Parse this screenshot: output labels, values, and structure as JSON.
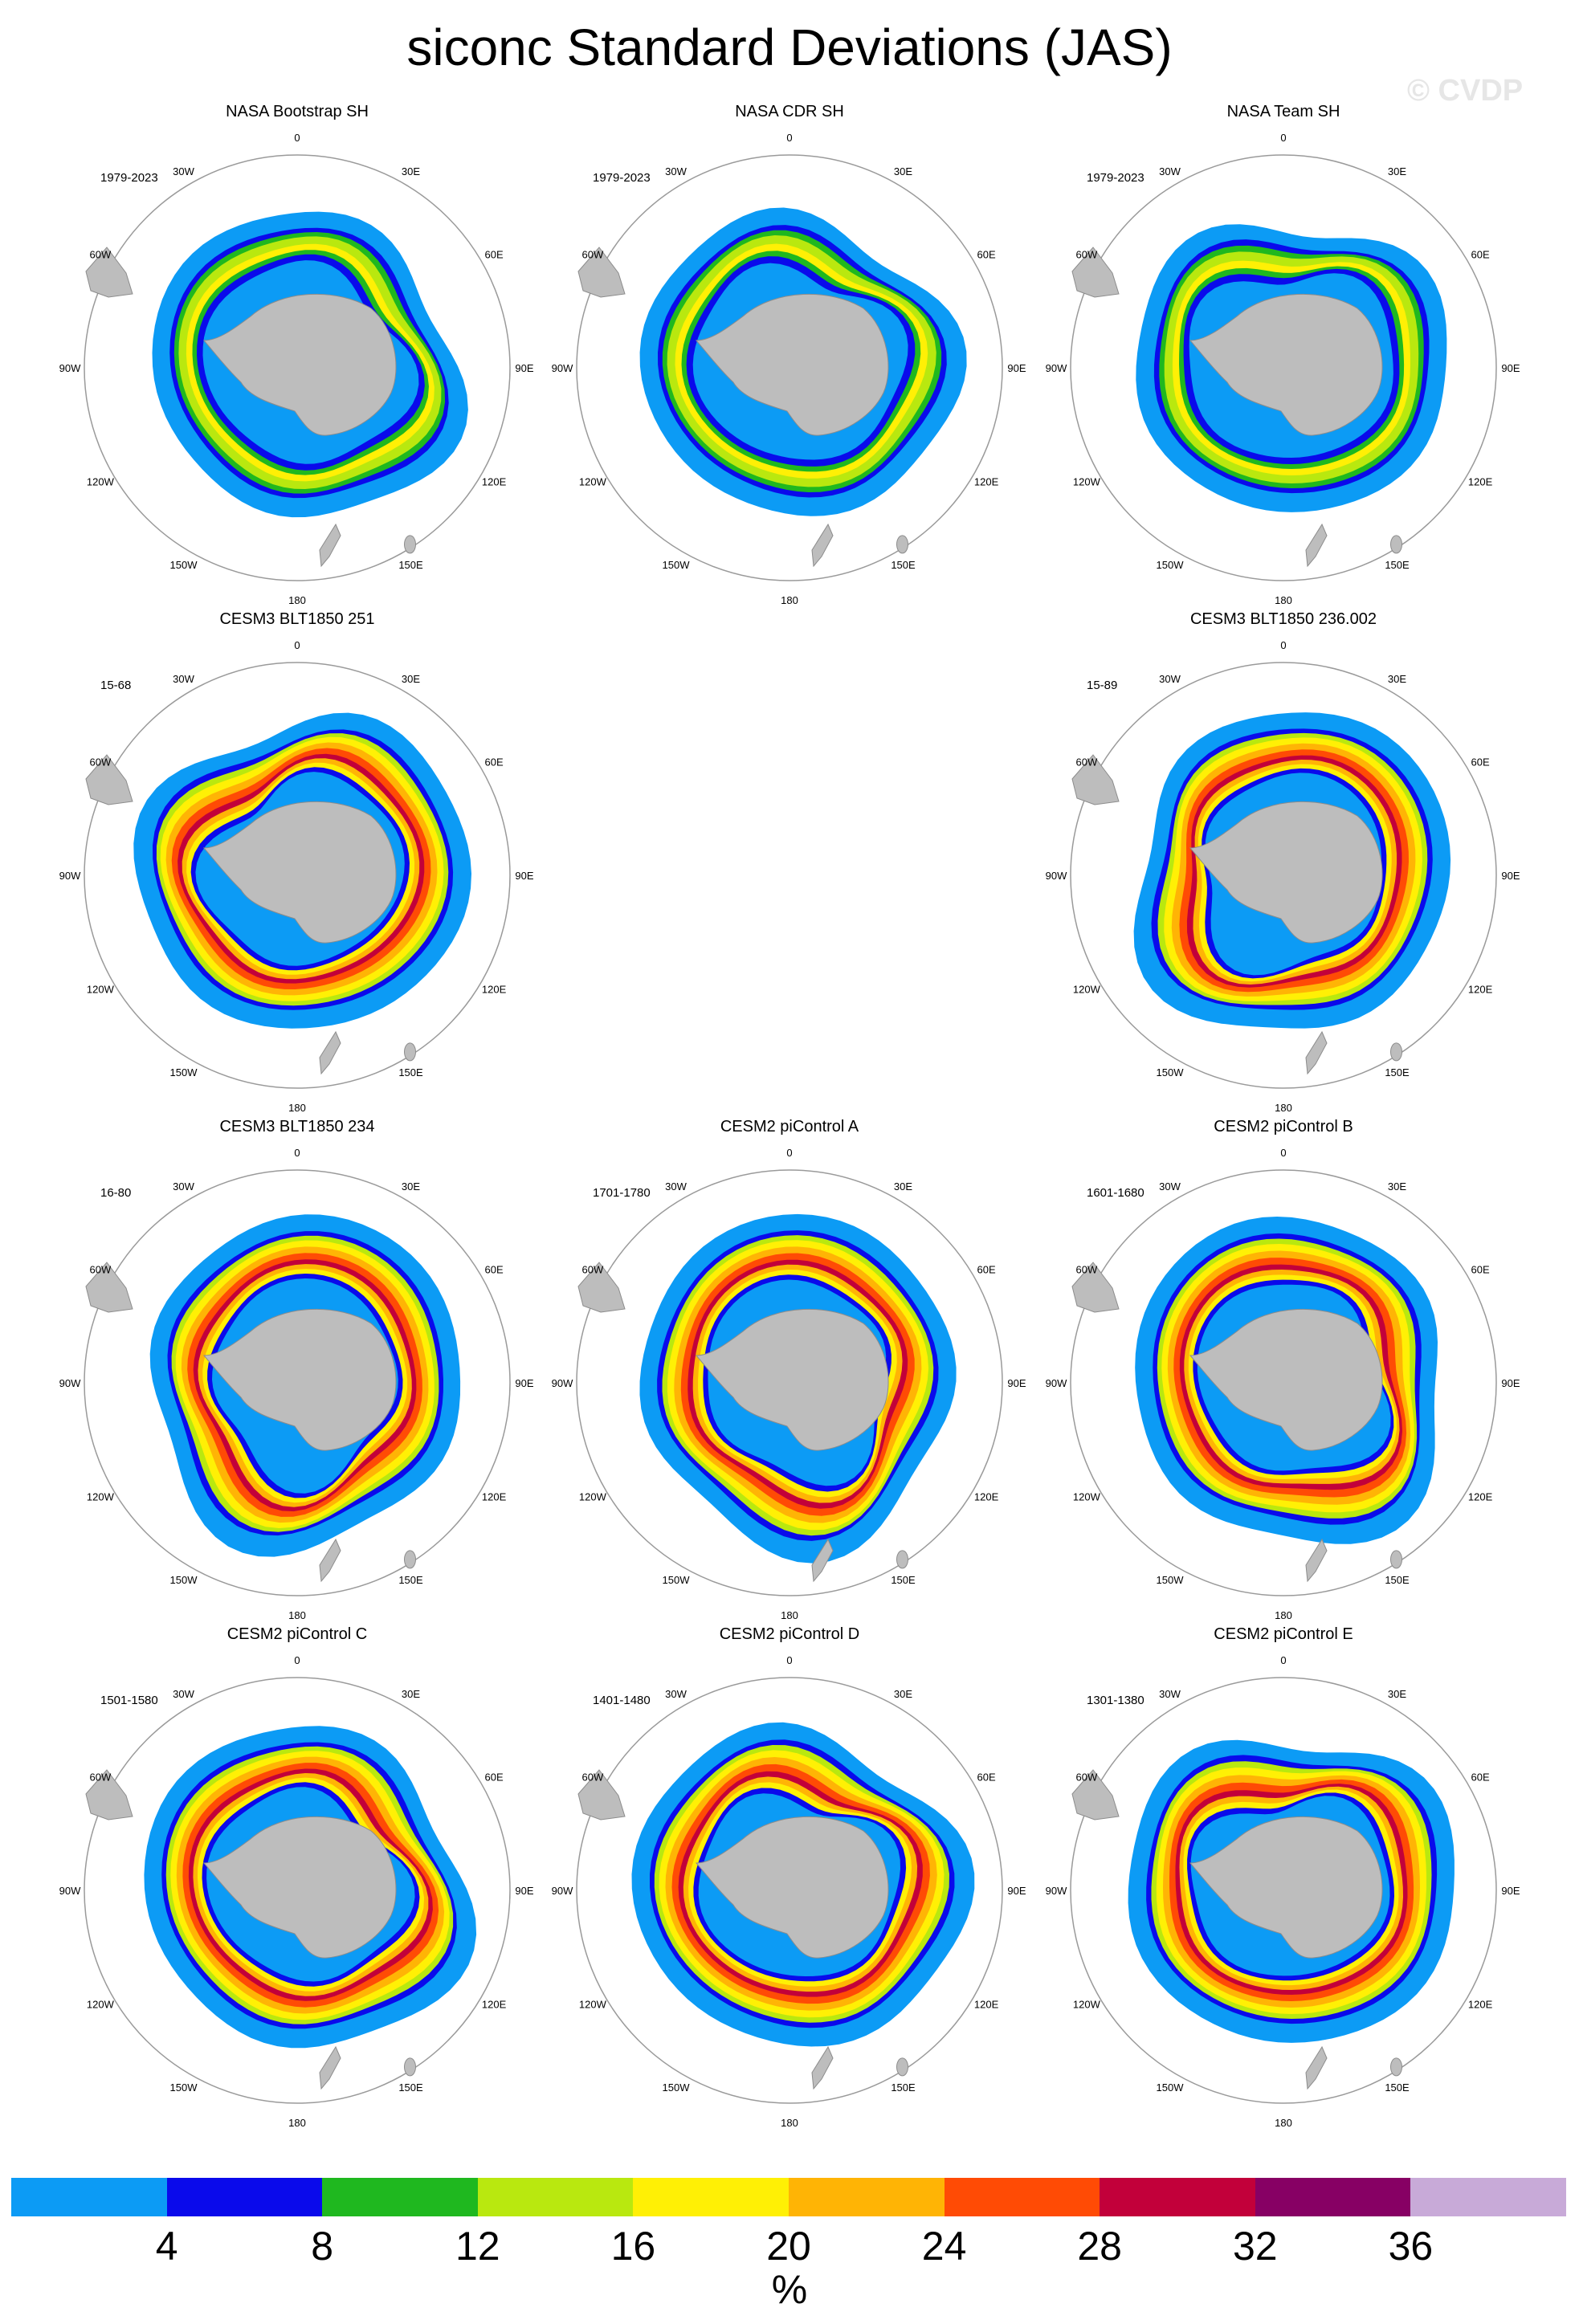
{
  "title": "siconc Standard Deviations (JAS)",
  "watermark": "© CVDP",
  "colorbar": {
    "colors": [
      "#0c9bf5",
      "#0a0aeb",
      "#1fb81f",
      "#b9e80f",
      "#fff005",
      "#ffb405",
      "#ff4b05",
      "#c2003a",
      "#870064",
      "#c8aad8"
    ],
    "tick_labels": [
      "4",
      "8",
      "12",
      "16",
      "20",
      "24",
      "28",
      "32",
      "36"
    ],
    "units": "%"
  },
  "panels": [
    {
      "title": "NASA Bootstrap SH",
      "period": "1979-2023",
      "style": "obs"
    },
    {
      "title": "NASA CDR SH",
      "period": "1979-2023",
      "style": "obs"
    },
    {
      "title": "NASA Team SH",
      "period": "1979-2023",
      "style": "obs"
    },
    {
      "title": "CESM3 BLT1850 251",
      "period": "15-68",
      "style": "model"
    },
    null,
    {
      "title": "CESM3 BLT1850 236.002",
      "period": "15-89",
      "style": "model"
    },
    {
      "title": "CESM3 BLT1850 234",
      "period": "16-80",
      "style": "model"
    },
    {
      "title": "CESM2 piControl A",
      "period": "1701-1780",
      "style": "model"
    },
    {
      "title": "CESM2 piControl B",
      "period": "1601-1680",
      "style": "model"
    },
    {
      "title": "CESM2 piControl C",
      "period": "1501-1580",
      "style": "model"
    },
    {
      "title": "CESM2 piControl D",
      "period": "1401-1480",
      "style": "model"
    },
    {
      "title": "CESM2 piControl E",
      "period": "1301-1380",
      "style": "model"
    }
  ],
  "longitude_labels": [
    "0",
    "30E",
    "60E",
    "90E",
    "120E",
    "150E",
    "180",
    "150W",
    "120W",
    "90W",
    "60W",
    "30W"
  ]
}
